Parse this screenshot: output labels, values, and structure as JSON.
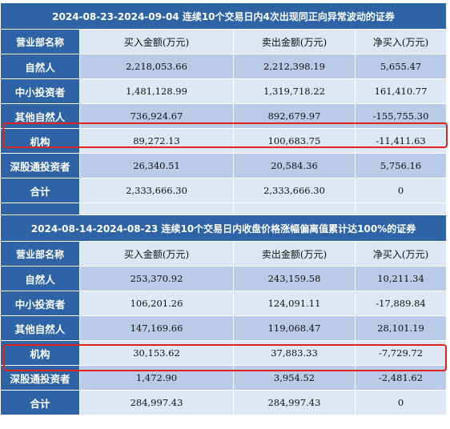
{
  "tables": [
    {
      "title": "2024-08-23-2024-09-04 连续10个交易日内4次出现同正向异常波动的证券",
      "headers": [
        "营业部名称",
        "买入金额(万元)",
        "卖出金额(万元)",
        "净买入(万元)"
      ],
      "rows": [
        {
          "name": "自然人",
          "buy": "2,218,053.66",
          "sell": "2,212,398.19",
          "net": "5,655.47"
        },
        {
          "name": "中小投资者",
          "buy": "1,481,128.99",
          "sell": "1,319,718.22",
          "net": "161,410.77"
        },
        {
          "name": "其他自然人",
          "buy": "736,924.67",
          "sell": "892,679.97",
          "net": "-155,755.30"
        },
        {
          "name": "机构",
          "buy": "89,272.13",
          "sell": "100,683.75",
          "net": "-11,411.63"
        },
        {
          "name": "深股通投资者",
          "buy": "26,340.51",
          "sell": "20,584.36",
          "net": "5,756.16"
        },
        {
          "name": "合计",
          "buy": "2,333,666.30",
          "sell": "2,333,666.30",
          "net": "0"
        }
      ]
    },
    {
      "title": "2024-08-14-2024-08-23 连续10个交易日内收盘价格涨幅偏离值累计达100%的证券",
      "headers": [
        "营业部名称",
        "买入金额(万元)",
        "卖出金额(万元)",
        "净买入(万元)"
      ],
      "rows": [
        {
          "name": "自然人",
          "buy": "253,370.92",
          "sell": "243,159.58",
          "net": "10,211.34"
        },
        {
          "name": "中小投资者",
          "buy": "106,201.26",
          "sell": "124,091.11",
          "net": "-17,889.84"
        },
        {
          "name": "其他自然人",
          "buy": "147,169.66",
          "sell": "119,068.47",
          "net": "28,101.19"
        },
        {
          "name": "机构",
          "buy": "30,153.62",
          "sell": "37,883.33",
          "net": "-7,729.72"
        },
        {
          "name": "深股通投资者",
          "buy": "1,472.90",
          "sell": "3,954.52",
          "net": "-2,481.62"
        },
        {
          "name": "合计",
          "buy": "284,997.43",
          "sell": "284,997.43",
          "net": "0"
        }
      ]
    }
  ],
  "colors": {
    "header_blue": "#2e64a5",
    "row_dark": "#b9cbe6",
    "row_light": "#dfe7f4",
    "highlight": "#e0241b"
  }
}
